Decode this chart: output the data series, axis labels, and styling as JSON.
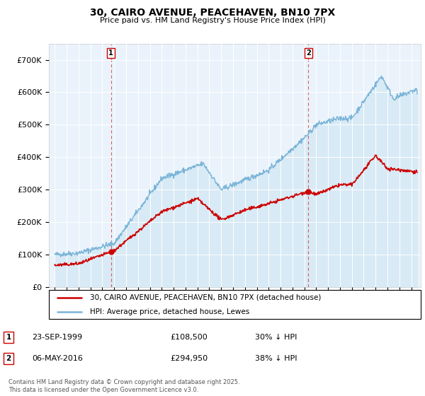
{
  "title": "30, CAIRO AVENUE, PEACEHAVEN, BN10 7PX",
  "subtitle": "Price paid vs. HM Land Registry's House Price Index (HPI)",
  "legend_line1": "30, CAIRO AVENUE, PEACEHAVEN, BN10 7PX (detached house)",
  "legend_line2": "HPI: Average price, detached house, Lewes",
  "annotation1": {
    "label": "1",
    "date": "23-SEP-1999",
    "price": "£108,500",
    "note": "30% ↓ HPI",
    "x_year": 1999.73,
    "y_val": 108500
  },
  "annotation2": {
    "label": "2",
    "date": "06-MAY-2016",
    "price": "£294,950",
    "note": "38% ↓ HPI",
    "x_year": 2016.35,
    "y_val": 294950
  },
  "footer": "Contains HM Land Registry data © Crown copyright and database right 2025.\nThis data is licensed under the Open Government Licence v3.0.",
  "hpi_color": "#7ab4d8",
  "hpi_fill_color": "#d8eaf5",
  "price_color": "#cc0000",
  "annotation_line_color": "#cc0000",
  "ylim": [
    0,
    750000
  ],
  "yticks": [
    0,
    100000,
    200000,
    300000,
    400000,
    500000,
    600000,
    700000
  ],
  "ytick_labels": [
    "£0",
    "£100K",
    "£200K",
    "£300K",
    "£400K",
    "£500K",
    "£600K",
    "£700K"
  ],
  "xlim_start": 1994.5,
  "xlim_end": 2025.8,
  "bg_color": "#eaf3fb"
}
